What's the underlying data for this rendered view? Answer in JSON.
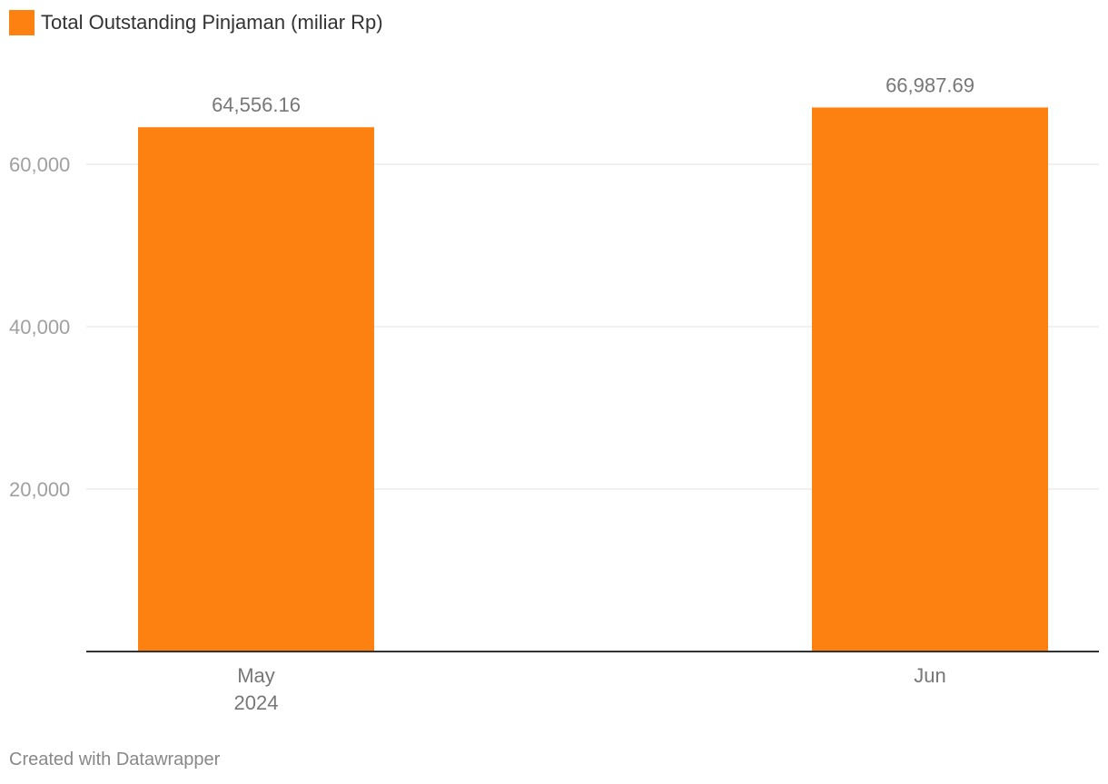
{
  "legend": {
    "label": "Total Outstanding Pinjaman (miliar Rp)",
    "color": "#fd8111"
  },
  "credit": "Created with Datawrapper",
  "chart_data": {
    "type": "bar",
    "categories": [
      "May\n2024",
      "Jun"
    ],
    "series": [
      {
        "name": "Total Outstanding Pinjaman (miliar Rp)",
        "values": [
          64556.16,
          66987.69
        ],
        "value_labels": [
          "64,556.16",
          "66,987.69"
        ],
        "color": "#fd8111"
      }
    ],
    "yticks": [
      20000,
      40000,
      60000
    ],
    "ytick_labels": [
      "20,000",
      "40,000",
      "60,000"
    ],
    "ylim": [
      0,
      75000
    ],
    "grid": true,
    "legend_position": "top-left"
  }
}
